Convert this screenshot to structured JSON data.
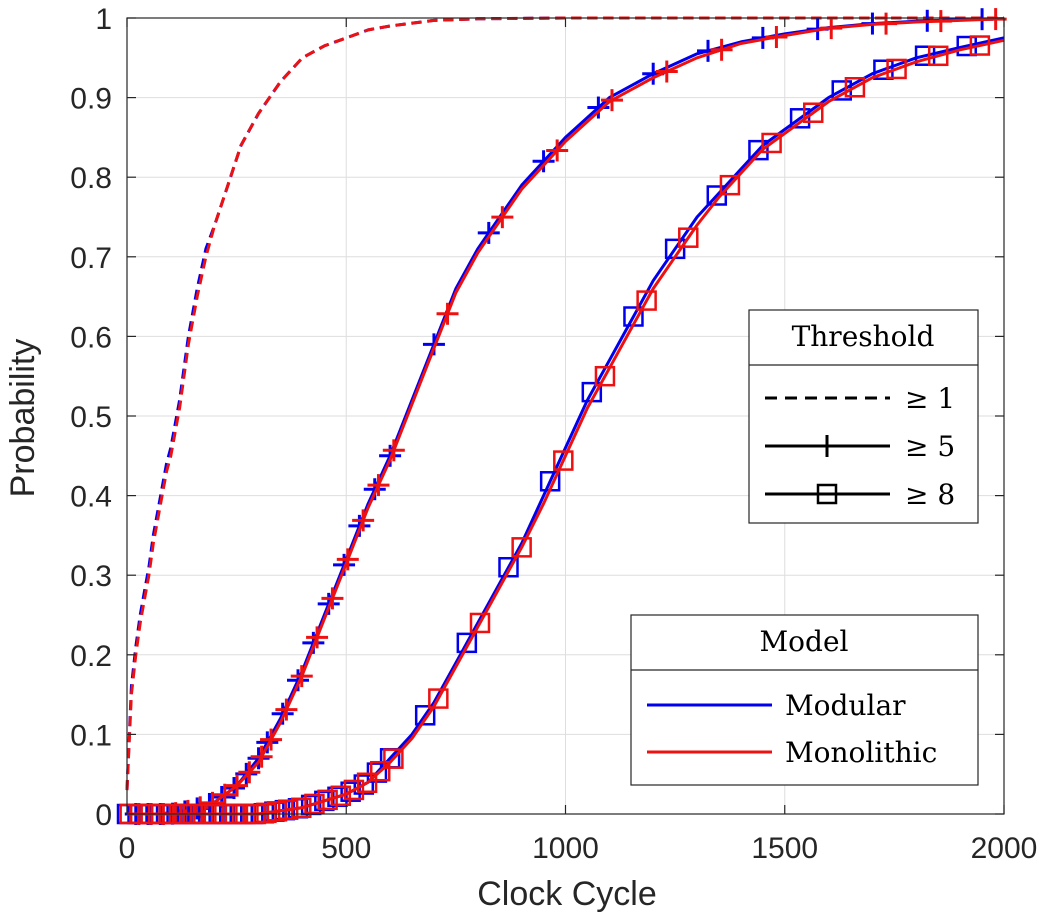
{
  "chart_data": {
    "type": "line",
    "title": "",
    "xlabel": "Clock Cycle",
    "ylabel": "Probability",
    "xlim": [
      0,
      2000
    ],
    "ylim": [
      0,
      1
    ],
    "xticks": [
      0,
      500,
      1000,
      1500,
      2000
    ],
    "xtick_labels": [
      "0",
      "500",
      "1000",
      "1500",
      "2000"
    ],
    "yticks": [
      0,
      0.1,
      0.2,
      0.3,
      0.4,
      0.5,
      0.6,
      0.7,
      0.8,
      0.9,
      1
    ],
    "ytick_labels": [
      "0",
      "0.1",
      "0.2",
      "0.3",
      "0.4",
      "0.5",
      "0.6",
      "0.7",
      "0.8",
      "0.9",
      "1"
    ],
    "grid": true,
    "colors": {
      "Modular": "#0000ee",
      "Monolithic": "#ee1111"
    },
    "legend_threshold": {
      "title": "Threshold",
      "placement": "right-middle",
      "entries": [
        {
          "label": "≥ 1",
          "style": "dashed",
          "marker": "none"
        },
        {
          "label": "≥ 5",
          "style": "solid",
          "marker": "plus"
        },
        {
          "label": "≥ 8",
          "style": "solid",
          "marker": "square"
        }
      ]
    },
    "legend_model": {
      "title": "Model",
      "placement": "bottom-right",
      "entries": [
        {
          "label": "Modular",
          "color": "#0000ee"
        },
        {
          "label": "Monolithic",
          "color": "#ee1111"
        }
      ]
    },
    "series": [
      {
        "model": "Modular",
        "threshold": "≥ 1",
        "style": "dashed",
        "marker": "none",
        "color": "#0000ee",
        "x": [
          0,
          10,
          20,
          30,
          40,
          50,
          60,
          70,
          80,
          90,
          100,
          120,
          140,
          160,
          180,
          200,
          230,
          260,
          300,
          350,
          400,
          450,
          500,
          550,
          600,
          700,
          800,
          1000,
          1500,
          2000
        ],
        "y": [
          0.03,
          0.16,
          0.21,
          0.25,
          0.28,
          0.31,
          0.35,
          0.38,
          0.41,
          0.44,
          0.46,
          0.52,
          0.6,
          0.66,
          0.71,
          0.74,
          0.79,
          0.84,
          0.88,
          0.92,
          0.95,
          0.965,
          0.975,
          0.985,
          0.99,
          0.997,
          0.999,
          1.0,
          1.0,
          1.0
        ]
      },
      {
        "model": "Monolithic",
        "threshold": "≥ 1",
        "style": "dashed",
        "marker": "none",
        "color": "#ee1111",
        "x": [
          0,
          10,
          20,
          30,
          40,
          50,
          60,
          70,
          80,
          90,
          100,
          120,
          140,
          160,
          180,
          200,
          230,
          260,
          300,
          350,
          400,
          450,
          500,
          550,
          600,
          700,
          800,
          1000,
          1500,
          2000
        ],
        "y": [
          0.03,
          0.15,
          0.2,
          0.24,
          0.27,
          0.3,
          0.34,
          0.37,
          0.4,
          0.43,
          0.45,
          0.51,
          0.59,
          0.65,
          0.7,
          0.74,
          0.79,
          0.84,
          0.88,
          0.92,
          0.95,
          0.965,
          0.975,
          0.985,
          0.99,
          0.997,
          0.999,
          1.0,
          1.0,
          1.0
        ]
      },
      {
        "model": "Modular",
        "threshold": "≥ 5",
        "style": "solid",
        "marker": "plus",
        "color": "#0000ee",
        "x": [
          0,
          100,
          150,
          200,
          250,
          300,
          350,
          400,
          450,
          500,
          550,
          600,
          650,
          700,
          750,
          800,
          850,
          900,
          950,
          1000,
          1100,
          1200,
          1300,
          1400,
          1500,
          1600,
          1700,
          1800,
          1900,
          2000
        ],
        "y": [
          0.0,
          0.0,
          0.005,
          0.015,
          0.035,
          0.07,
          0.12,
          0.18,
          0.25,
          0.32,
          0.39,
          0.45,
          0.52,
          0.59,
          0.66,
          0.71,
          0.75,
          0.79,
          0.82,
          0.85,
          0.9,
          0.93,
          0.955,
          0.97,
          0.98,
          0.988,
          0.993,
          0.996,
          0.998,
          0.999
        ]
      },
      {
        "model": "Monolithic",
        "threshold": "≥ 5",
        "style": "solid",
        "marker": "plus",
        "color": "#ee1111",
        "x": [
          0,
          100,
          150,
          200,
          250,
          300,
          350,
          400,
          450,
          500,
          550,
          600,
          650,
          700,
          750,
          800,
          850,
          900,
          950,
          1000,
          1100,
          1200,
          1300,
          1400,
          1500,
          1600,
          1700,
          1800,
          1900,
          2000
        ],
        "y": [
          0.0,
          0.0,
          0.005,
          0.015,
          0.035,
          0.065,
          0.115,
          0.175,
          0.245,
          0.315,
          0.385,
          0.445,
          0.515,
          0.585,
          0.655,
          0.705,
          0.745,
          0.785,
          0.815,
          0.845,
          0.895,
          0.925,
          0.95,
          0.968,
          0.978,
          0.987,
          0.992,
          0.995,
          0.997,
          0.999
        ]
      },
      {
        "model": "Modular",
        "threshold": "≥ 8",
        "style": "solid",
        "marker": "square",
        "color": "#0000ee",
        "x": [
          0,
          300,
          400,
          500,
          550,
          600,
          650,
          700,
          750,
          800,
          850,
          900,
          950,
          1000,
          1050,
          1100,
          1150,
          1200,
          1250,
          1300,
          1350,
          1400,
          1450,
          1500,
          1600,
          1700,
          1800,
          1900,
          2000
        ],
        "y": [
          0.0,
          0.0,
          0.008,
          0.025,
          0.04,
          0.07,
          0.1,
          0.14,
          0.19,
          0.24,
          0.29,
          0.34,
          0.4,
          0.46,
          0.52,
          0.57,
          0.62,
          0.67,
          0.71,
          0.75,
          0.78,
          0.81,
          0.84,
          0.86,
          0.9,
          0.93,
          0.95,
          0.963,
          0.975
        ]
      },
      {
        "model": "Monolithic",
        "threshold": "≥ 8",
        "style": "solid",
        "marker": "square",
        "color": "#ee1111",
        "x": [
          0,
          300,
          400,
          500,
          550,
          600,
          650,
          700,
          750,
          800,
          850,
          900,
          950,
          1000,
          1050,
          1100,
          1150,
          1200,
          1250,
          1300,
          1350,
          1400,
          1450,
          1500,
          1600,
          1700,
          1800,
          1900,
          2000
        ],
        "y": [
          0.0,
          0.0,
          0.008,
          0.025,
          0.04,
          0.065,
          0.095,
          0.135,
          0.185,
          0.235,
          0.285,
          0.335,
          0.39,
          0.45,
          0.51,
          0.56,
          0.61,
          0.66,
          0.7,
          0.74,
          0.775,
          0.805,
          0.835,
          0.855,
          0.895,
          0.925,
          0.945,
          0.96,
          0.972
        ]
      }
    ]
  }
}
